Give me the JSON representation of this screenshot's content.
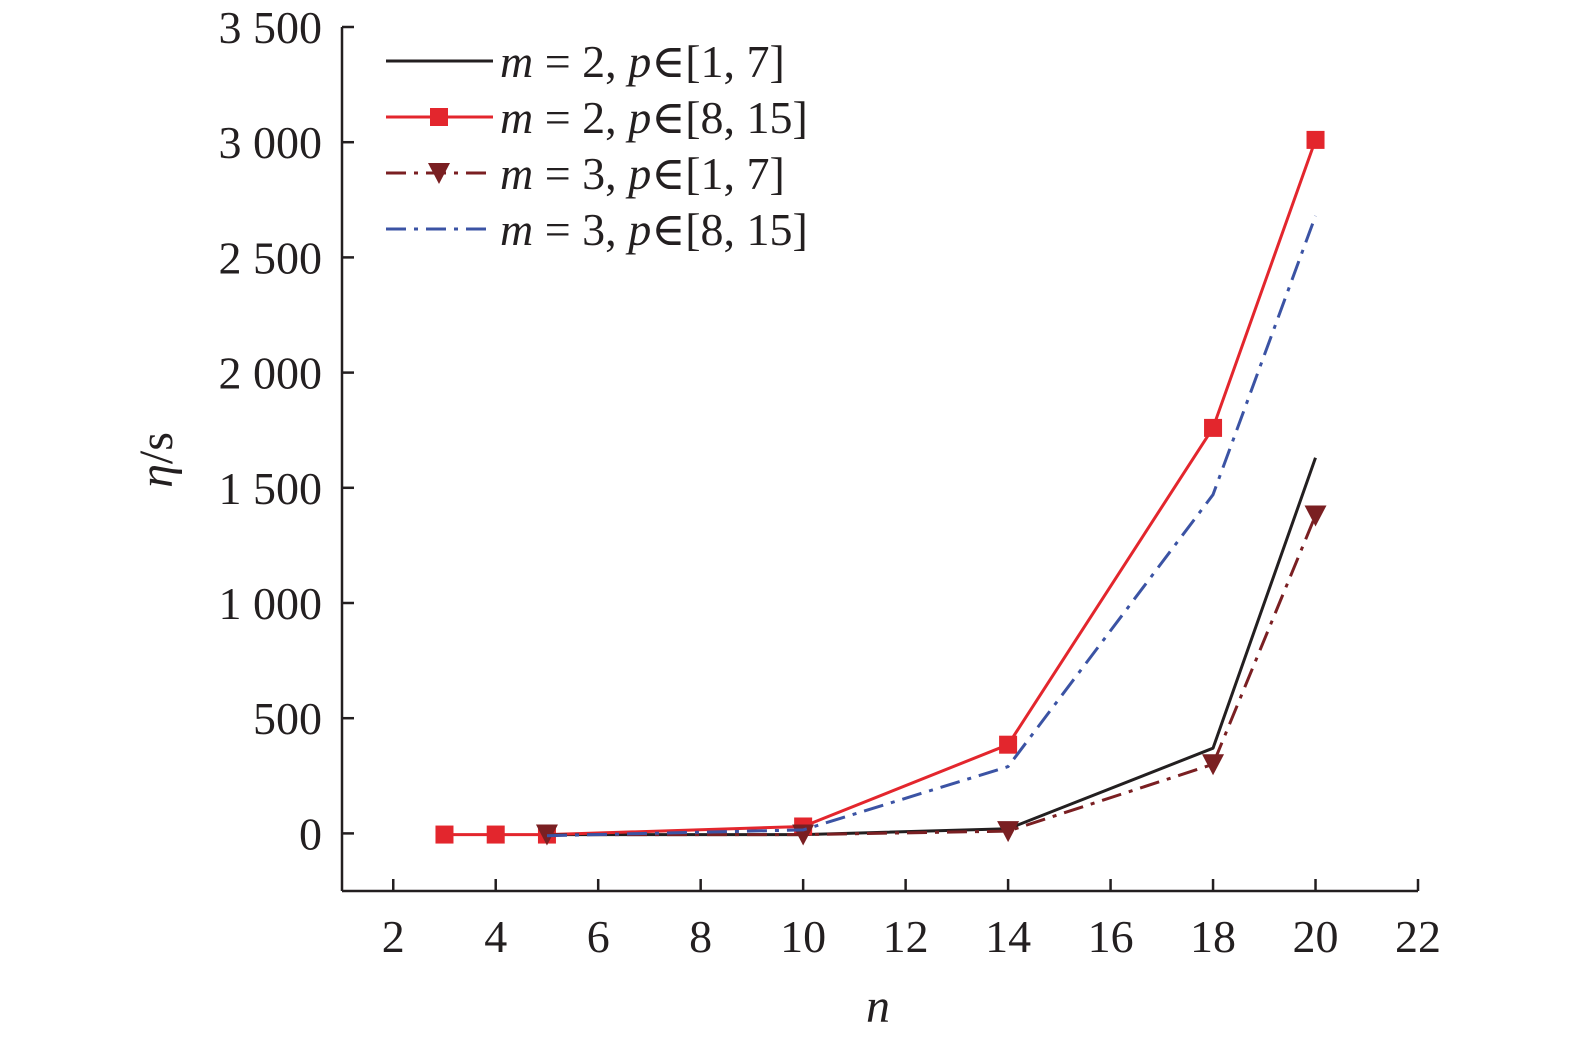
{
  "chart_data": {
    "type": "line",
    "xlabel": "n",
    "ylabel_var": "η",
    "ylabel_unit": "/s",
    "xlim": [
      1,
      22
    ],
    "ylim": [
      -250,
      3500
    ],
    "x_ticks": [
      2,
      4,
      6,
      8,
      10,
      12,
      14,
      16,
      18,
      20,
      22
    ],
    "x_tick_labels": [
      "2",
      "4",
      "6",
      "8",
      "10",
      "12",
      "14",
      "16",
      "18",
      "20",
      "22"
    ],
    "y_ticks": [
      0,
      500,
      1000,
      1500,
      2000,
      2500,
      3000,
      3500
    ],
    "y_tick_labels": [
      "0",
      "500",
      "1 000",
      "1 500",
      "2 000",
      "2 500",
      "3 000",
      "3 500"
    ],
    "grid": false,
    "legend_position": "top-left",
    "series": [
      {
        "name_parts": [
          "m",
          " = 2, ",
          "p",
          "∈[1, 7]"
        ],
        "color": "#231f20",
        "dash": "solid",
        "marker": "none",
        "x": [
          5,
          10,
          14,
          18,
          20
        ],
        "y": [
          -5,
          -5,
          20,
          370,
          1630
        ]
      },
      {
        "name_parts": [
          "m",
          " = 2, ",
          "p",
          "∈[8, 15]"
        ],
        "color": "#e3262d",
        "dash": "solid",
        "marker": "square",
        "x": [
          3,
          4,
          5,
          10,
          14,
          18,
          20
        ],
        "y": [
          -5,
          -5,
          -5,
          30,
          385,
          1760,
          3010
        ]
      },
      {
        "name_parts": [
          "m",
          " = 3, ",
          "p",
          "∈[1, 7]"
        ],
        "color": "#7a1f22",
        "dash": "dashdot",
        "marker": "triangle-down",
        "x": [
          5,
          10,
          14,
          18,
          20
        ],
        "y": [
          -5,
          -5,
          10,
          300,
          1380
        ]
      },
      {
        "name_parts": [
          "m",
          " = 3, ",
          "p",
          "∈[8, 15]"
        ],
        "color": "#3b53a4",
        "dash": "dashdot",
        "marker": "none",
        "x": [
          5,
          10,
          14,
          18,
          20
        ],
        "y": [
          -10,
          15,
          290,
          1470,
          2680
        ]
      }
    ]
  }
}
